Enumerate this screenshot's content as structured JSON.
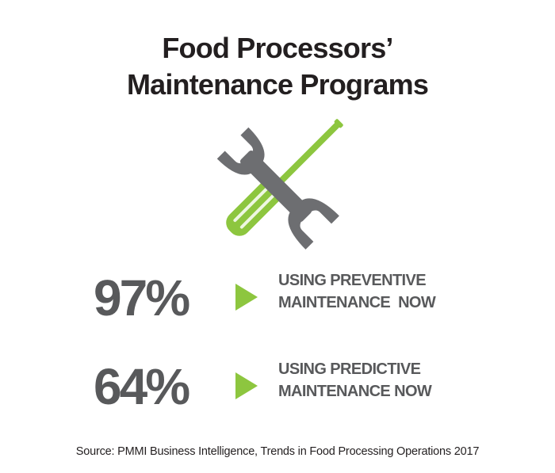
{
  "title": {
    "line1": "Food Processors’",
    "line2": "Maintenance Programs"
  },
  "icon": {
    "name": "wrench-screwdriver-icon",
    "wrench_color": "#6d6e71",
    "screwdriver_color": "#8dc63f"
  },
  "stats": [
    {
      "value": "97%",
      "label_line1": "USING PREVENTIVE",
      "label_line2": "MAINTENANCE  NOW"
    },
    {
      "value": "64%",
      "label_line1": "USING PREDICTIVE",
      "label_line2": "MAINTENANCE NOW"
    }
  ],
  "arrow": {
    "name": "triangle-arrow-icon",
    "color": "#8dc63f"
  },
  "source": "Source: PMMI Business Intelligence, Trends in Food Processing Operations 2017"
}
